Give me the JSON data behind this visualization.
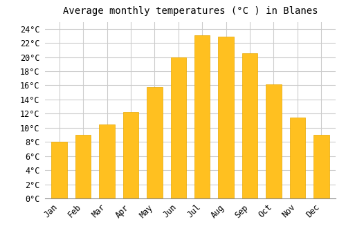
{
  "title": "Average monthly temperatures (°C ) in Blanes",
  "months": [
    "Jan",
    "Feb",
    "Mar",
    "Apr",
    "May",
    "Jun",
    "Jul",
    "Aug",
    "Sep",
    "Oct",
    "Nov",
    "Dec"
  ],
  "values": [
    8.0,
    9.0,
    10.5,
    12.2,
    15.8,
    20.0,
    23.1,
    22.9,
    20.5,
    16.1,
    11.4,
    9.0
  ],
  "bar_color": "#FFC020",
  "bar_edge_color": "#E8A800",
  "background_color": "#FFFFFF",
  "grid_color": "#CCCCCC",
  "ylim": [
    0,
    25
  ],
  "yticks": [
    0,
    2,
    4,
    6,
    8,
    10,
    12,
    14,
    16,
    18,
    20,
    22,
    24
  ],
  "title_fontsize": 10,
  "tick_fontsize": 8.5,
  "font_family": "monospace",
  "bar_width": 0.65,
  "label_rotation": 45
}
